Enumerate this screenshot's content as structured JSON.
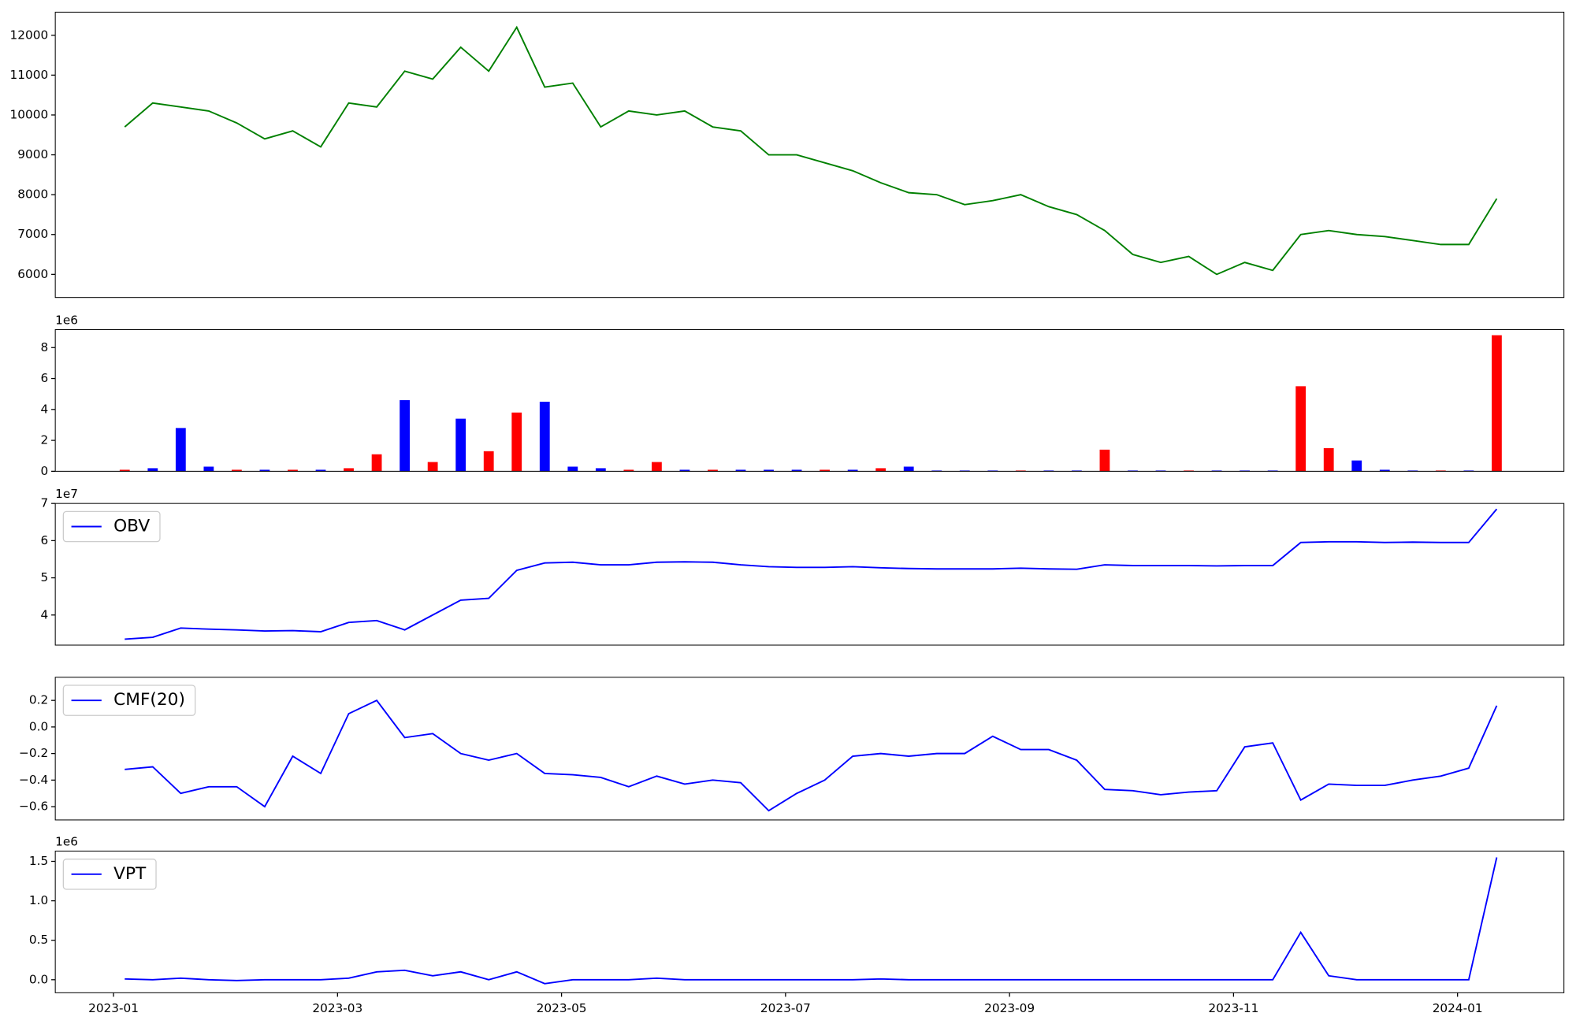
{
  "chart_data": [
    {
      "type": "line",
      "x": [
        0.1,
        0.35,
        0.6,
        0.85,
        1.1,
        1.35,
        1.6,
        1.85,
        2.1,
        2.35,
        2.6,
        2.85,
        3.1,
        3.35,
        3.6,
        3.85,
        4.1,
        4.35,
        4.6,
        4.85,
        5.1,
        5.35,
        5.6,
        5.85,
        6.1,
        6.35,
        6.6,
        6.85,
        7.1,
        7.35,
        7.6,
        7.85,
        8.1,
        8.35,
        8.6,
        8.85,
        9.1,
        9.35,
        9.6,
        9.85,
        10.1,
        10.35,
        10.6,
        10.85,
        11.1,
        11.35,
        11.6,
        11.85,
        12.1,
        12.35
      ],
      "series": [
        {
          "color": "#008000",
          "values": [
            9700,
            10300,
            10200,
            10100,
            9800,
            9400,
            9600,
            9200,
            10300,
            10200,
            11100,
            10900,
            11700,
            11100,
            12200,
            10700,
            10800,
            9700,
            10100,
            10000,
            10100,
            9700,
            9600,
            9000,
            9000,
            8800,
            8600,
            8300,
            8050,
            8000,
            7750,
            7850,
            8000,
            7700,
            7500,
            7100,
            6500,
            6300,
            6450,
            6000,
            6300,
            6100,
            7000,
            7100,
            7000,
            6950,
            6850,
            6750,
            6750,
            7900
          ]
        }
      ],
      "xlim": [
        -0.52,
        12.95
      ],
      "ylim": [
        5420,
        12580
      ],
      "yticks": [
        6000,
        7000,
        8000,
        9000,
        10000,
        11000,
        12000
      ]
    },
    {
      "type": "bar",
      "x": [
        0.1,
        0.35,
        0.6,
        0.85,
        1.1,
        1.35,
        1.6,
        1.85,
        2.1,
        2.35,
        2.6,
        2.85,
        3.1,
        3.35,
        3.6,
        3.85,
        4.1,
        4.35,
        4.6,
        4.85,
        5.1,
        5.35,
        5.6,
        5.85,
        6.1,
        6.35,
        6.6,
        6.85,
        7.1,
        7.35,
        7.6,
        7.85,
        8.1,
        8.35,
        8.6,
        8.85,
        9.1,
        9.35,
        9.6,
        9.85,
        10.1,
        10.35,
        10.6,
        10.85,
        11.1,
        11.35,
        11.6,
        11.85,
        12.1,
        12.35
      ],
      "values": [
        100000,
        200000,
        2800000,
        300000,
        100000,
        100000,
        100000,
        100000,
        200000,
        1100000,
        4600000,
        600000,
        3400000,
        1300000,
        3800000,
        4500000,
        300000,
        200000,
        100000,
        600000,
        100000,
        100000,
        100000,
        100000,
        100000,
        100000,
        100000,
        200000,
        300000,
        50000,
        50000,
        50000,
        50000,
        50000,
        50000,
        1400000,
        50000,
        50000,
        50000,
        50000,
        50000,
        50000,
        5500000,
        1500000,
        700000,
        100000,
        50000,
        50000,
        50000,
        8800000
      ],
      "colors": [
        "red",
        "blue",
        "blue",
        "blue",
        "red",
        "blue",
        "red",
        "blue",
        "red",
        "red",
        "blue",
        "red",
        "blue",
        "red",
        "red",
        "blue",
        "blue",
        "blue",
        "red",
        "red",
        "blue",
        "red",
        "blue",
        "blue",
        "blue",
        "red",
        "blue",
        "red",
        "blue",
        "blue",
        "blue",
        "blue",
        "red",
        "blue",
        "blue",
        "red",
        "blue",
        "blue",
        "red",
        "blue",
        "blue",
        "blue",
        "red",
        "red",
        "blue",
        "blue",
        "blue",
        "red",
        "blue",
        "red"
      ],
      "xlim": [
        -0.52,
        12.95
      ],
      "ylim": [
        0,
        9160000
      ],
      "y_offset_label": "1e6",
      "yticks": [
        {
          "value": 0,
          "label": "0"
        },
        {
          "value": 2000000,
          "label": "2"
        },
        {
          "value": 4000000,
          "label": "4"
        },
        {
          "value": 6000000,
          "label": "6"
        },
        {
          "value": 8000000,
          "label": "8"
        }
      ]
    },
    {
      "type": "line",
      "x": [
        0.1,
        0.35,
        0.6,
        0.85,
        1.1,
        1.35,
        1.6,
        1.85,
        2.1,
        2.35,
        2.6,
        2.85,
        3.1,
        3.35,
        3.6,
        3.85,
        4.1,
        4.35,
        4.6,
        4.85,
        5.1,
        5.35,
        5.6,
        5.85,
        6.1,
        6.35,
        6.6,
        6.85,
        7.1,
        7.35,
        7.6,
        7.85,
        8.1,
        8.35,
        8.6,
        8.85,
        9.1,
        9.35,
        9.6,
        9.85,
        10.1,
        10.35,
        10.6,
        10.85,
        11.1,
        11.35,
        11.6,
        11.85,
        12.1,
        12.35
      ],
      "series": [
        {
          "name": "OBV",
          "color": "#0000ff",
          "values": [
            33500000,
            34000000,
            36500000,
            36200000,
            36000000,
            35700000,
            35800000,
            35500000,
            38000000,
            38500000,
            36000000,
            40000000,
            44000000,
            44500000,
            52000000,
            54000000,
            54200000,
            53500000,
            53500000,
            54200000,
            54300000,
            54200000,
            53500000,
            53000000,
            52800000,
            52800000,
            53000000,
            52700000,
            52500000,
            52400000,
            52400000,
            52400000,
            52600000,
            52400000,
            52300000,
            53500000,
            53300000,
            53300000,
            53300000,
            53200000,
            53300000,
            53300000,
            59500000,
            59700000,
            59700000,
            59500000,
            59600000,
            59500000,
            59500000,
            68500000
          ]
        }
      ],
      "xlim": [
        -0.52,
        12.95
      ],
      "ylim": [
        31900000,
        70000000
      ],
      "y_offset_label": "1e7",
      "yticks": [
        {
          "value": 40000000,
          "label": "4"
        },
        {
          "value": 50000000,
          "label": "5"
        },
        {
          "value": 60000000,
          "label": "6"
        },
        {
          "value": 70000000,
          "label": "7"
        }
      ]
    },
    {
      "type": "line",
      "x": [
        0.1,
        0.35,
        0.6,
        0.85,
        1.1,
        1.35,
        1.6,
        1.85,
        2.1,
        2.35,
        2.6,
        2.85,
        3.1,
        3.35,
        3.6,
        3.85,
        4.1,
        4.35,
        4.6,
        4.85,
        5.1,
        5.35,
        5.6,
        5.85,
        6.1,
        6.35,
        6.6,
        6.85,
        7.1,
        7.35,
        7.6,
        7.85,
        8.1,
        8.35,
        8.6,
        8.85,
        9.1,
        9.35,
        9.6,
        9.85,
        10.1,
        10.35,
        10.6,
        10.85,
        11.1,
        11.35,
        11.6,
        11.85,
        12.1,
        12.35
      ],
      "series": [
        {
          "name": "CMF(20)",
          "color": "#0000ff",
          "values": [
            -0.32,
            -0.3,
            -0.5,
            -0.45,
            -0.45,
            -0.6,
            -0.22,
            -0.35,
            0.1,
            0.2,
            -0.08,
            -0.05,
            -0.2,
            -0.25,
            -0.2,
            -0.35,
            -0.36,
            -0.38,
            -0.45,
            -0.37,
            -0.43,
            -0.4,
            -0.42,
            -0.63,
            -0.5,
            -0.4,
            -0.22,
            -0.2,
            -0.22,
            -0.2,
            -0.2,
            -0.07,
            -0.17,
            -0.17,
            -0.25,
            -0.47,
            -0.48,
            -0.51,
            -0.49,
            -0.48,
            -0.15,
            -0.12,
            -0.55,
            -0.43,
            -0.44,
            -0.44,
            -0.4,
            -0.37,
            -0.31,
            0.16
          ]
        }
      ],
      "xlim": [
        -0.52,
        12.95
      ],
      "ylim": [
        -0.7,
        0.374
      ],
      "yticks": [
        {
          "value": -0.6,
          "label": "−0.6"
        },
        {
          "value": -0.4,
          "label": "−0.4"
        },
        {
          "value": -0.2,
          "label": "−0.2"
        },
        {
          "value": 0,
          "label": "0.0"
        },
        {
          "value": 0.2,
          "label": "0.2"
        }
      ]
    },
    {
      "type": "line",
      "x": [
        0.1,
        0.35,
        0.6,
        0.85,
        1.1,
        1.35,
        1.6,
        1.85,
        2.1,
        2.35,
        2.6,
        2.85,
        3.1,
        3.35,
        3.6,
        3.85,
        4.1,
        4.35,
        4.6,
        4.85,
        5.1,
        5.35,
        5.6,
        5.85,
        6.1,
        6.35,
        6.6,
        6.85,
        7.1,
        7.35,
        7.6,
        7.85,
        8.1,
        8.35,
        8.6,
        8.85,
        9.1,
        9.35,
        9.6,
        9.85,
        10.1,
        10.35,
        10.6,
        10.85,
        11.1,
        11.35,
        11.6,
        11.85,
        12.1,
        12.35
      ],
      "series": [
        {
          "name": "VPT",
          "color": "#0000ff",
          "values": [
            10000,
            0,
            20000,
            0,
            -10000,
            0,
            0,
            0,
            20000,
            100000,
            120000,
            50000,
            100000,
            0,
            100000,
            -50000,
            0,
            0,
            0,
            20000,
            0,
            0,
            0,
            0,
            0,
            0,
            0,
            10000,
            0,
            0,
            0,
            0,
            0,
            0,
            0,
            0,
            0,
            0,
            0,
            0,
            0,
            0,
            600000,
            50000,
            0,
            0,
            0,
            0,
            0,
            1550000
          ]
        }
      ],
      "xlim": [
        -0.52,
        12.95
      ],
      "ylim": [
        -165000,
        1630000
      ],
      "y_offset_label": "1e6",
      "yticks": [
        {
          "value": 0,
          "label": "0.0"
        },
        {
          "value": 500000,
          "label": "0.5"
        },
        {
          "value": 1000000,
          "label": "1.0"
        },
        {
          "value": 1500000,
          "label": "1.5"
        }
      ],
      "xticks": [
        {
          "value": 0,
          "label": "2023-01"
        },
        {
          "value": 2,
          "label": "2023-03"
        },
        {
          "value": 4,
          "label": "2023-05"
        },
        {
          "value": 6,
          "label": "2023-07"
        },
        {
          "value": 8,
          "label": "2023-09"
        },
        {
          "value": 10,
          "label": "2023-11"
        },
        {
          "value": 12,
          "label": "2024-01"
        }
      ]
    }
  ]
}
